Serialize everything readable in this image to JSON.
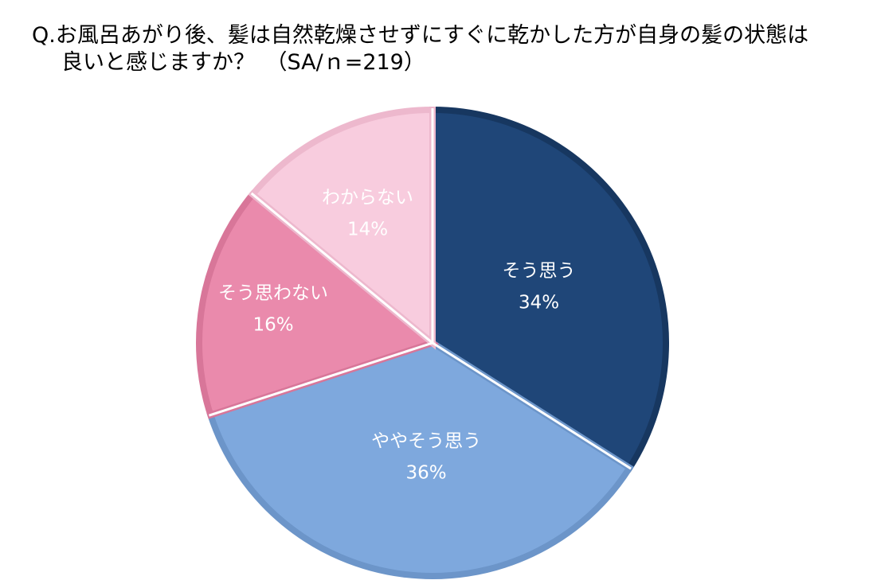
{
  "chart_data": {
    "type": "pie",
    "title_line1": "Q.お風呂あがり後、髪は自然乾燥させずにすぐに乾かした方が自身の髪の状態は",
    "title_line2": "良いと感じますか？　（SA/ｎ=219）",
    "start_angle_deg": 0,
    "direction": "clockwise",
    "slices": [
      {
        "label": "そう思う",
        "value": 34,
        "value_label": "34%",
        "color": "#1F4678",
        "edge": "#173760",
        "text_color": "#ffffff"
      },
      {
        "label": "ややそう思う",
        "value": 36,
        "value_label": "36%",
        "color": "#7EA8DD",
        "edge": "#6C95C9",
        "text_color": "#ffffff"
      },
      {
        "label": "そう思わない",
        "value": 16,
        "value_label": "16%",
        "color": "#EA8AAC",
        "edge": "#D87699",
        "text_color": "#ffffff"
      },
      {
        "label": "わからない",
        "value": 14,
        "value_label": "14%",
        "color": "#F8CCDE",
        "edge": "#EDB8CD",
        "text_color": "#ffffff"
      }
    ]
  }
}
